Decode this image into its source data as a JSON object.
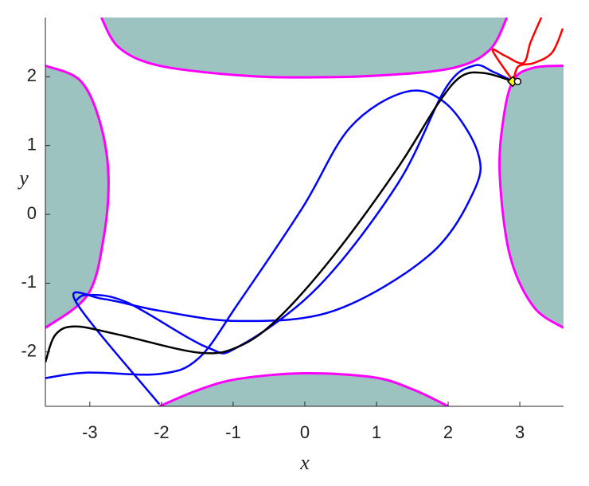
{
  "chart_data": {
    "type": "line",
    "xlabel": "x",
    "ylabel": "y",
    "xlim": [
      -3.62,
      3.61
    ],
    "ylim": [
      -2.79,
      2.86
    ],
    "xticks": [
      -3,
      -2,
      -1,
      0,
      1,
      2,
      3
    ],
    "yticks": [
      -2,
      -1,
      0,
      1,
      2
    ],
    "region_color": "#9cc3c0",
    "boundary_color": "#ff00ff",
    "regions": [
      {
        "x": [
          -2.84,
          -2.59,
          -2.03,
          -0.92,
          0,
          1.08,
          2.08,
          2.58,
          2.82
        ],
        "y": [
          2.86,
          2.42,
          2.16,
          2.02,
          1.99,
          2.02,
          2.13,
          2.39,
          2.86
        ]
      },
      {
        "x": [
          -3.62,
          -3.14,
          -2.87,
          -2.74,
          -2.81,
          -3.03,
          -3.62
        ],
        "y": [
          2.16,
          1.95,
          1.38,
          0.57,
          -0.36,
          -1.17,
          -1.65
        ]
      },
      {
        "x": [
          3.61,
          3.19,
          2.91,
          2.77,
          2.72,
          2.86,
          3.19,
          3.61
        ],
        "y": [
          2.16,
          2.13,
          1.95,
          1.38,
          0.57,
          -0.59,
          -1.34,
          -1.65
        ]
      },
      {
        "x": [
          -2.03,
          -1.48,
          -0.92,
          0,
          0.97,
          1.52,
          2.0
        ],
        "y": [
          -2.79,
          -2.55,
          -2.39,
          -2.31,
          -2.37,
          -2.55,
          -2.79
        ]
      }
    ],
    "series": [
      {
        "color": "#0000ff",
        "x": [
          -3.62,
          -3.03,
          -2.03,
          -1.48,
          -0.92,
          -0.03,
          0.63,
          1.41,
          1.97,
          2.41,
          2.36,
          1.74,
          0.41,
          -0.92,
          -2.03,
          -2.81,
          -3.2,
          -2.03
        ],
        "y": [
          -2.38,
          -2.3,
          -2.32,
          -2.09,
          -1.28,
          0.1,
          1.26,
          1.78,
          1.61,
          0.91,
          0.34,
          -0.59,
          -1.4,
          -1.55,
          -1.4,
          -1.23,
          -1.26,
          -2.76
        ]
      },
      {
        "color": "#0000ff",
        "x": [
          -3.2,
          -3.03,
          -2.48,
          -1.37,
          -0.92,
          0.19,
          1.3,
          1.97,
          2.36,
          2.63,
          2.91
        ],
        "y": [
          -1.26,
          -1.17,
          -1.28,
          -1.93,
          -1.92,
          -1.05,
          0.45,
          1.84,
          2.16,
          2.07,
          1.93
        ]
      },
      {
        "color": "#ff0000",
        "x": [
          2.91,
          2.62,
          2.8,
          3.05,
          3.15,
          3.3
        ],
        "y": [
          1.93,
          2.38,
          2.3,
          2.2,
          2.5,
          2.86
        ]
      },
      {
        "color": "#ff0000",
        "x": [
          2.91,
          2.98,
          3.2,
          3.45,
          3.6
        ],
        "y": [
          1.93,
          2.15,
          2.2,
          2.35,
          2.7
        ]
      },
      {
        "color": "#000000",
        "x": [
          -3.62,
          -3.48,
          -3.2,
          -2.59,
          -1.48,
          -0.92,
          -0.37,
          0.41,
          1.3,
          1.86,
          2.19,
          2.52,
          2.91
        ],
        "y": [
          -2.15,
          -1.75,
          -1.63,
          -1.75,
          -2.01,
          -1.92,
          -1.51,
          -0.59,
          0.68,
          1.61,
          2.01,
          2.05,
          1.93
        ]
      }
    ],
    "markers": {
      "x": [
        2.9,
        2.97
      ],
      "y": [
        1.93,
        1.93
      ],
      "colors": [
        "#ffff00",
        "#ffffff"
      ]
    }
  }
}
